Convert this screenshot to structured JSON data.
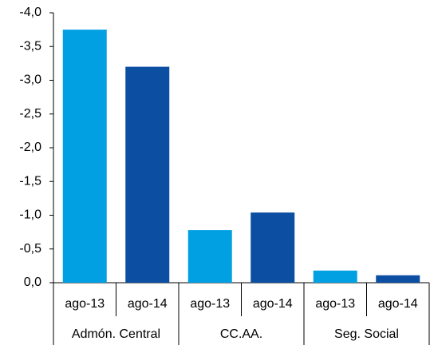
{
  "chart_data": {
    "type": "bar",
    "categories": [
      "Admón. Central",
      "CC.AA.",
      "Seg. Social"
    ],
    "series": [
      {
        "name": "ago-13",
        "color": "#00a0e3",
        "values": [
          -3.75,
          -0.78,
          -0.18
        ]
      },
      {
        "name": "ago-14",
        "color": "#0b4ea2",
        "values": [
          -3.2,
          -1.04,
          -0.11
        ]
      }
    ],
    "ylim": [
      0,
      -4.0
    ],
    "yticks": [
      {
        "value": 0,
        "label": "0,0"
      },
      {
        "value": -0.5,
        "label": "-0,5"
      },
      {
        "value": -1.0,
        "label": "-1,0"
      },
      {
        "value": -1.5,
        "label": "-1,5"
      },
      {
        "value": -2.0,
        "label": "-2,0"
      },
      {
        "value": -2.5,
        "label": "-2,5"
      },
      {
        "value": -3.0,
        "label": "-3,0"
      },
      {
        "value": -3.5,
        "label": "-3,5"
      },
      {
        "value": -4.0,
        "label": "-4,0"
      }
    ],
    "grid": false
  }
}
